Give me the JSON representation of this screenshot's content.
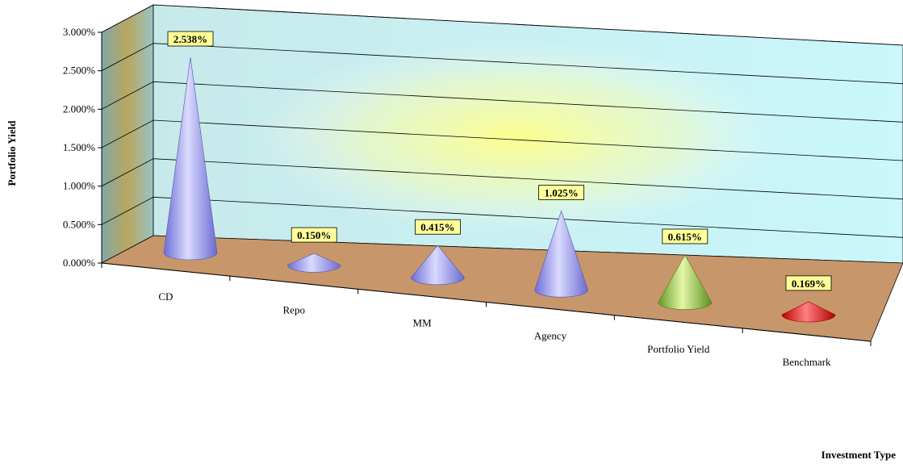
{
  "chart_data": {
    "type": "bar",
    "style": "3d-cone",
    "categories": [
      "CD",
      "Repo",
      "MM",
      "Agency",
      "Portfolio Yield",
      "Benchmark"
    ],
    "values": [
      2.538,
      0.15,
      0.415,
      1.025,
      0.615,
      0.169
    ],
    "data_labels": [
      "2.538%",
      "0.150%",
      "0.415%",
      "1.025%",
      "0.615%",
      "0.169%"
    ],
    "ylabel": "Portfolio Yield",
    "xlabel": "Investment Type",
    "ylim": [
      0,
      3
    ],
    "yticks": [
      "0.000%",
      "0.500%",
      "1.000%",
      "1.500%",
      "2.000%",
      "2.500%",
      "3.000%"
    ],
    "grid": true,
    "colors": {
      "default": "#9999ff",
      "Portfolio Yield": "#99cc33",
      "Benchmark": "#ff0000",
      "floor": "#c8966b",
      "wall": "#ccf5f8",
      "label_bg": "#ffff99"
    }
  }
}
